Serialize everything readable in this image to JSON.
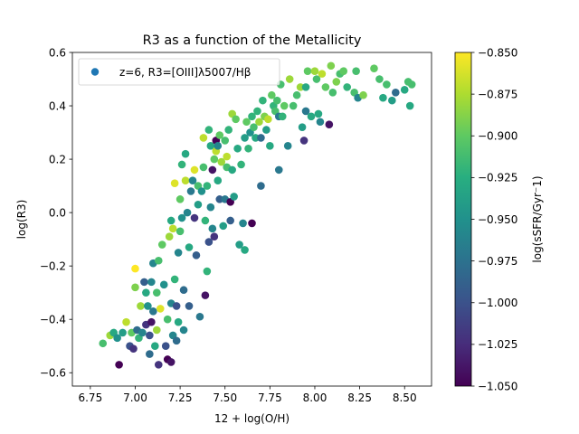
{
  "chart_data": {
    "type": "scatter",
    "title": "R3 as a function of the Metallicity",
    "xlabel": "12 + log(O/H)",
    "ylabel": "log(R3)",
    "xlim": [
      6.65,
      8.65
    ],
    "ylim": [
      -0.65,
      0.6
    ],
    "xticks": [
      6.75,
      7.0,
      7.25,
      7.5,
      7.75,
      8.0,
      8.25,
      8.5
    ],
    "xtick_labels": [
      "6.75",
      "7.00",
      "7.25",
      "7.50",
      "7.75",
      "8.00",
      "8.25",
      "8.50"
    ],
    "yticks": [
      -0.6,
      -0.4,
      -0.2,
      0.0,
      0.2,
      0.4,
      0.6
    ],
    "ytick_labels": [
      "−0.6",
      "−0.4",
      "−0.2",
      "0.0",
      "0.2",
      "0.4",
      "0.6"
    ],
    "legend": {
      "label": "z=6, R3=[OIII]λ5007/Hβ",
      "marker_color": "#1f77b4",
      "location": "upper-left"
    },
    "colorbar": {
      "label": "log(sSFR/Gyr⁻1)",
      "colormap": "viridis",
      "range": [
        -1.05,
        -0.85
      ],
      "ticks": [
        -1.05,
        -1.025,
        -1.0,
        -0.975,
        -0.95,
        -0.925,
        -0.9,
        -0.875,
        -0.85
      ],
      "tick_labels": [
        "−1.050",
        "−1.025",
        "−1.000",
        "−0.975",
        "−0.950",
        "−0.925",
        "−0.900",
        "−0.875",
        "−0.850"
      ]
    },
    "series": [
      {
        "name": "z=6, R3=[OIII]λ5007/Hβ",
        "points": [
          [
            6.82,
            -0.49,
            -0.91
          ],
          [
            6.86,
            -0.46,
            -0.88
          ],
          [
            6.88,
            -0.45,
            -0.93
          ],
          [
            6.9,
            -0.47,
            -0.95
          ],
          [
            6.91,
            -0.57,
            -1.05
          ],
          [
            6.93,
            -0.45,
            -0.94
          ],
          [
            6.95,
            -0.41,
            -0.87
          ],
          [
            6.97,
            -0.5,
            -1.0
          ],
          [
            6.98,
            -0.45,
            -0.9
          ],
          [
            6.99,
            -0.51,
            -1.02
          ],
          [
            7.0,
            -0.28,
            -0.89
          ],
          [
            7.0,
            -0.21,
            -0.85
          ],
          [
            7.01,
            -0.44,
            -0.98
          ],
          [
            7.02,
            -0.47,
            -0.92
          ],
          [
            7.03,
            -0.35,
            -0.88
          ],
          [
            7.04,
            -0.45,
            -0.96
          ],
          [
            7.05,
            -0.26,
            -0.99
          ],
          [
            7.06,
            -0.3,
            -0.93
          ],
          [
            7.06,
            -0.42,
            -1.02
          ],
          [
            7.07,
            -0.35,
            -0.95
          ],
          [
            7.08,
            -0.46,
            -1.0
          ],
          [
            7.08,
            -0.53,
            -0.98
          ],
          [
            7.09,
            -0.26,
            -0.96
          ],
          [
            7.09,
            -0.41,
            -1.04
          ],
          [
            7.1,
            -0.19,
            -0.96
          ],
          [
            7.1,
            -0.37,
            -0.97
          ],
          [
            7.11,
            -0.5,
            -0.93
          ],
          [
            7.12,
            -0.3,
            -0.91
          ],
          [
            7.12,
            -0.44,
            -0.88
          ],
          [
            7.13,
            -0.57,
            -1.02
          ],
          [
            7.13,
            -0.18,
            -0.91
          ],
          [
            7.14,
            -0.36,
            -0.86
          ],
          [
            7.15,
            -0.12,
            -0.9
          ],
          [
            7.16,
            -0.27,
            -0.95
          ],
          [
            7.17,
            -0.5,
            -1.0
          ],
          [
            7.18,
            -0.4,
            -0.91
          ],
          [
            7.18,
            -0.55,
            -1.05
          ],
          [
            7.19,
            -0.09,
            -0.88
          ],
          [
            7.2,
            -0.34,
            -0.96
          ],
          [
            7.2,
            -0.03,
            -0.93
          ],
          [
            7.2,
            -0.56,
            -1.04
          ],
          [
            7.21,
            -0.46,
            -0.96
          ],
          [
            7.21,
            -0.06,
            -0.87
          ],
          [
            7.22,
            -0.25,
            -0.92
          ],
          [
            7.22,
            0.11,
            -0.86
          ],
          [
            7.23,
            -0.48,
            -0.98
          ],
          [
            7.23,
            -0.35,
            -1.0
          ],
          [
            7.24,
            -0.41,
            -0.93
          ],
          [
            7.24,
            -0.15,
            -0.96
          ],
          [
            7.25,
            0.05,
            -0.9
          ],
          [
            7.25,
            -0.07,
            -0.91
          ],
          [
            7.26,
            -0.02,
            -0.95
          ],
          [
            7.26,
            0.18,
            -0.92
          ],
          [
            7.27,
            -0.44,
            -0.96
          ],
          [
            7.27,
            -0.29,
            -0.98
          ],
          [
            7.28,
            0.12,
            -0.87
          ],
          [
            7.28,
            0.22,
            -0.93
          ],
          [
            7.29,
            0.0,
            -0.96
          ],
          [
            7.3,
            -0.13,
            -0.93
          ],
          [
            7.3,
            -0.35,
            -0.99
          ],
          [
            7.31,
            0.08,
            -0.97
          ],
          [
            7.32,
            0.12,
            -0.96
          ],
          [
            7.33,
            0.16,
            -0.86
          ],
          [
            7.33,
            -0.02,
            -1.02
          ],
          [
            7.34,
            -0.16,
            -0.99
          ],
          [
            7.35,
            0.1,
            -0.91
          ],
          [
            7.35,
            0.03,
            -0.94
          ],
          [
            7.36,
            -0.39,
            -0.97
          ],
          [
            7.37,
            0.08,
            -0.95
          ],
          [
            7.38,
            0.17,
            -0.91
          ],
          [
            7.38,
            0.28,
            -0.87
          ],
          [
            7.39,
            -0.31,
            -1.04
          ],
          [
            7.39,
            -0.03,
            -0.92
          ],
          [
            7.4,
            0.1,
            -0.92
          ],
          [
            7.4,
            -0.22,
            -0.92
          ],
          [
            7.41,
            0.31,
            -0.92
          ],
          [
            7.41,
            -0.11,
            -1.0
          ],
          [
            7.42,
            0.25,
            -0.93
          ],
          [
            7.42,
            0.02,
            -0.96
          ],
          [
            7.43,
            0.16,
            -1.04
          ],
          [
            7.43,
            -0.06,
            -0.96
          ],
          [
            7.44,
            0.2,
            -0.9
          ],
          [
            7.44,
            -0.09,
            -1.02
          ],
          [
            7.45,
            0.23,
            -0.87
          ],
          [
            7.45,
            0.27,
            -1.05
          ],
          [
            7.46,
            0.25,
            -0.96
          ],
          [
            7.46,
            0.12,
            -0.93
          ],
          [
            7.47,
            0.29,
            -0.9
          ],
          [
            7.47,
            0.05,
            -0.99
          ],
          [
            7.48,
            0.19,
            -0.88
          ],
          [
            7.49,
            -0.05,
            -0.94
          ],
          [
            7.5,
            0.27,
            -0.91
          ],
          [
            7.5,
            0.05,
            -0.97
          ],
          [
            7.51,
            0.21,
            -0.87
          ],
          [
            7.51,
            0.17,
            -0.91
          ],
          [
            7.52,
            0.31,
            -0.92
          ],
          [
            7.53,
            -0.03,
            -0.99
          ],
          [
            7.53,
            0.04,
            -1.05
          ],
          [
            7.54,
            0.37,
            -0.88
          ],
          [
            7.54,
            0.16,
            -0.93
          ],
          [
            7.55,
            0.06,
            -0.94
          ],
          [
            7.56,
            0.35,
            -0.9
          ],
          [
            7.57,
            0.24,
            -0.93
          ],
          [
            7.58,
            -0.12,
            -0.94
          ],
          [
            7.59,
            0.18,
            -0.92
          ],
          [
            7.6,
            -0.04,
            -0.96
          ],
          [
            7.61,
            0.28,
            -0.94
          ],
          [
            7.61,
            -0.14,
            -0.93
          ],
          [
            7.62,
            0.34,
            -0.9
          ],
          [
            7.63,
            0.24,
            -0.92
          ],
          [
            7.64,
            0.3,
            -0.95
          ],
          [
            7.65,
            -0.04,
            -1.05
          ],
          [
            7.65,
            0.36,
            -0.92
          ],
          [
            7.66,
            0.32,
            -0.91
          ],
          [
            7.67,
            0.28,
            -0.93
          ],
          [
            7.68,
            0.38,
            -0.92
          ],
          [
            7.69,
            0.34,
            -0.88
          ],
          [
            7.7,
            0.1,
            -0.98
          ],
          [
            7.7,
            0.28,
            -0.98
          ],
          [
            7.71,
            0.42,
            -0.92
          ],
          [
            7.72,
            0.36,
            -0.89
          ],
          [
            7.73,
            0.31,
            -0.94
          ],
          [
            7.74,
            0.35,
            -0.87
          ],
          [
            7.75,
            0.25,
            -0.93
          ],
          [
            7.76,
            0.44,
            -0.9
          ],
          [
            7.77,
            0.4,
            -0.92
          ],
          [
            7.78,
            0.38,
            -0.91
          ],
          [
            7.79,
            0.42,
            -0.91
          ],
          [
            7.8,
            0.16,
            -0.97
          ],
          [
            7.8,
            0.36,
            -0.97
          ],
          [
            7.81,
            0.48,
            -0.91
          ],
          [
            7.82,
            0.36,
            -0.92
          ],
          [
            7.83,
            0.4,
            -0.9
          ],
          [
            7.85,
            0.25,
            -0.96
          ],
          [
            7.86,
            0.5,
            -0.88
          ],
          [
            7.88,
            0.4,
            -0.91
          ],
          [
            7.9,
            0.44,
            -0.91
          ],
          [
            7.92,
            0.47,
            -0.88
          ],
          [
            7.93,
            0.32,
            -0.94
          ],
          [
            7.94,
            0.27,
            -1.02
          ],
          [
            7.95,
            0.38,
            -0.97
          ],
          [
            7.95,
            0.47,
            -0.93
          ],
          [
            7.96,
            0.53,
            -0.9
          ],
          [
            7.98,
            0.36,
            -0.93
          ],
          [
            8.0,
            0.53,
            -0.88
          ],
          [
            8.01,
            0.5,
            -0.91
          ],
          [
            8.02,
            0.37,
            -0.93
          ],
          [
            8.03,
            0.34,
            -0.96
          ],
          [
            8.04,
            0.52,
            -0.87
          ],
          [
            8.06,
            0.47,
            -0.9
          ],
          [
            8.08,
            0.33,
            -1.04
          ],
          [
            8.09,
            0.55,
            -0.89
          ],
          [
            8.1,
            0.45,
            -0.91
          ],
          [
            8.12,
            0.49,
            -0.89
          ],
          [
            8.14,
            0.52,
            -0.91
          ],
          [
            8.16,
            0.53,
            -0.9
          ],
          [
            8.18,
            0.47,
            -0.92
          ],
          [
            8.22,
            0.45,
            -0.91
          ],
          [
            8.23,
            0.53,
            -0.91
          ],
          [
            8.24,
            0.43,
            -0.96
          ],
          [
            8.27,
            0.44,
            -0.89
          ],
          [
            8.33,
            0.54,
            -0.9
          ],
          [
            8.36,
            0.5,
            -0.91
          ],
          [
            8.38,
            0.43,
            -0.93
          ],
          [
            8.4,
            0.48,
            -0.91
          ],
          [
            8.43,
            0.42,
            -0.94
          ],
          [
            8.45,
            0.45,
            -0.98
          ],
          [
            8.5,
            0.46,
            -0.93
          ],
          [
            8.52,
            0.49,
            -0.91
          ],
          [
            8.53,
            0.4,
            -0.93
          ],
          [
            8.54,
            0.48,
            -0.91
          ]
        ]
      }
    ]
  }
}
